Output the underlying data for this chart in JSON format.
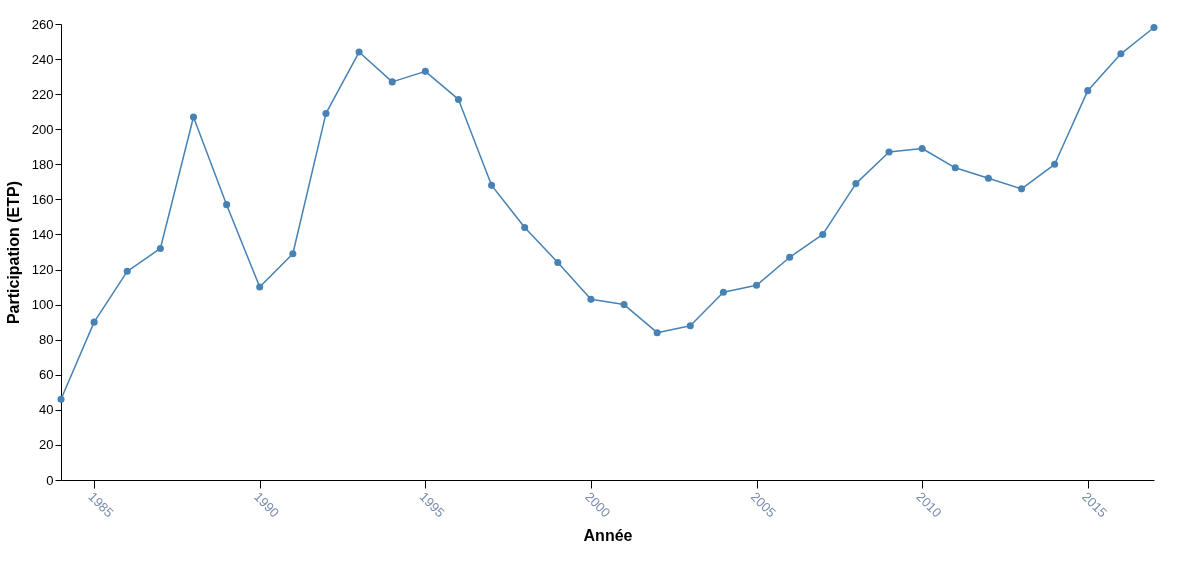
{
  "chart_data": {
    "type": "line",
    "xlabel": "Année",
    "ylabel": "Participation (ETP)",
    "x": [
      1984,
      1985,
      1986,
      1987,
      1988,
      1989,
      1990,
      1991,
      1992,
      1993,
      1994,
      1995,
      1996,
      1997,
      1998,
      1999,
      2000,
      2001,
      2002,
      2003,
      2004,
      2005,
      2006,
      2007,
      2008,
      2009,
      2010,
      2011,
      2012,
      2013,
      2014,
      2015,
      2016,
      2017
    ],
    "series": [
      {
        "color": "#4682b4",
        "values": [
          46,
          90,
          119,
          132,
          207,
          157,
          110,
          129,
          209,
          244,
          227,
          233,
          217,
          168,
          144,
          124,
          103,
          100,
          84,
          88,
          107,
          111,
          127,
          140,
          169,
          187,
          189,
          178,
          172,
          166,
          180,
          222,
          243,
          258
        ]
      }
    ],
    "xlim": [
      1984,
      2017
    ],
    "xticks": [
      1985,
      1990,
      1995,
      2000,
      2005,
      2010,
      2015
    ],
    "ylim": [
      0,
      260
    ],
    "yticks": [
      0,
      20,
      40,
      60,
      80,
      100,
      120,
      140,
      160,
      180,
      200,
      220,
      240,
      260
    ],
    "grid": false,
    "marker": "circle",
    "line_style": "solid"
  }
}
